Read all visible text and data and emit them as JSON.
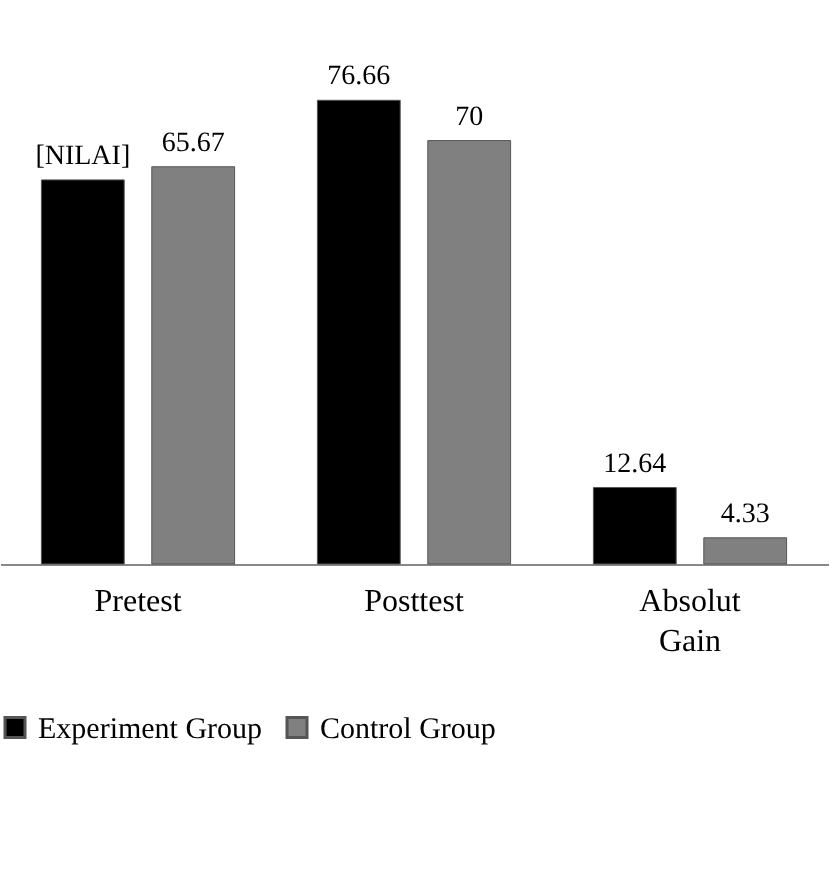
{
  "chart_data": {
    "type": "bar",
    "categories": [
      "Pretest",
      "Posttest",
      "Absolut Gain"
    ],
    "series": [
      {
        "name": "Experiment Group",
        "color": "#000000",
        "values": [
          63.5,
          76.66,
          12.64
        ],
        "value_labels": [
          "[NILAI]",
          "76.66",
          "12.64"
        ]
      },
      {
        "name": "Control Group",
        "color": "#808080",
        "values": [
          65.67,
          70,
          4.33
        ],
        "value_labels": [
          "65.67",
          "70",
          "4.33"
        ]
      }
    ],
    "tick_labels": "x",
    "legend": "bottom"
  }
}
